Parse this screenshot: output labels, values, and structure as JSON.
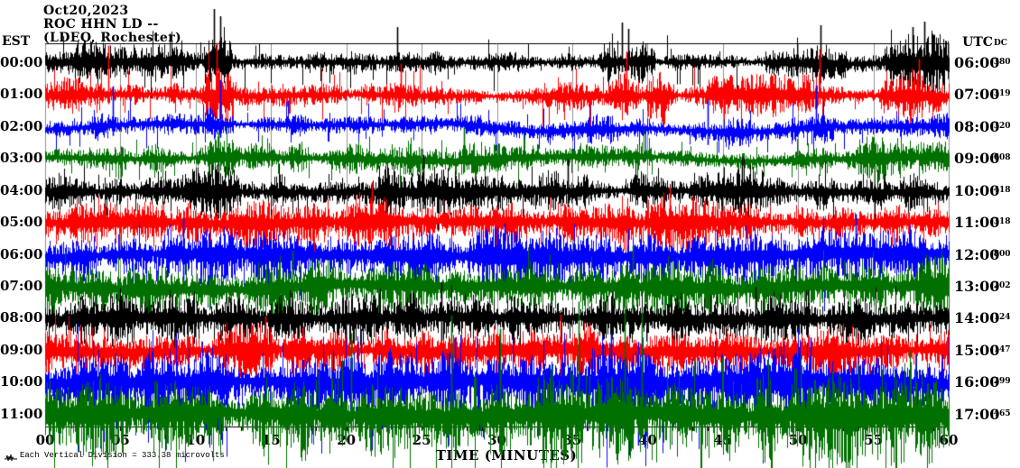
{
  "header": {
    "date": "Oct20,2023",
    "station": "ROC HHN LD --",
    "network": "(LDEO, Rochester)"
  },
  "axes": {
    "left_label": "EST",
    "right_label": "UTC",
    "dc_label": "DC",
    "x_title": "TIME (MINUTES)",
    "x_ticks": [
      "00",
      "05",
      "10",
      "15",
      "20",
      "25",
      "30",
      "35",
      "40",
      "45",
      "50",
      "55",
      "60"
    ]
  },
  "footnote": {
    "text": "Each Vertical Division = 333.38 microvolts",
    "icon": "mini-seismogram-icon"
  },
  "colors": {
    "background": "#ffffff",
    "frame": "#000000",
    "grid": "#909090",
    "trace_black": "#000000",
    "trace_red": "#ff0000",
    "trace_blue": "#0000ff",
    "trace_green": "#007000"
  },
  "noise_seed": 1337,
  "chart_data": {
    "type": "line",
    "variant": "helicorder-seismogram",
    "title": "ROC HHN LD -- (LDEO, Rochester) Oct20,2023",
    "xlabel": "TIME (MINUTES)",
    "x_range_minutes": [
      0,
      60
    ],
    "x_tick_step_minutes": 5,
    "minutes_per_row": 60,
    "grid": true,
    "rows": [
      {
        "est": "00:00",
        "utc": "06:00",
        "dc": "-380",
        "color": "#000000",
        "base_amp": 8,
        "wander": 2,
        "down_bias": 1.0,
        "tail": 30,
        "spike_rate": 0.05,
        "bursts": [
          [
            0,
            9.5,
            2.0
          ],
          [
            10.6,
            12.4,
            2.6
          ],
          [
            22.5,
            26.2,
            1.8
          ],
          [
            37,
            40.5,
            2.0
          ],
          [
            47.8,
            53.2,
            2.2
          ],
          [
            55.8,
            60,
            2.6
          ]
        ],
        "events": [
          [
            11.2,
            60,
            12
          ],
          [
            11.6,
            52,
            10
          ],
          [
            23.4,
            40,
            8
          ],
          [
            38.3,
            45,
            10
          ],
          [
            38.7,
            38,
            8
          ],
          [
            51.5,
            42,
            10
          ],
          [
            57.6,
            40,
            8
          ],
          [
            58.4,
            46,
            10
          ]
        ]
      },
      {
        "est": "01:00",
        "utc": "07:00",
        "dc": "-319",
        "color": "#ff0000",
        "base_amp": 8,
        "wander": 2,
        "down_bias": 1.0,
        "tail": 26,
        "spike_rate": 0.06,
        "bursts": [
          [
            0,
            2.5,
            1.7
          ],
          [
            10.6,
            12.5,
            2.3
          ],
          [
            22.5,
            26,
            1.6
          ],
          [
            34,
            42,
            2.0
          ],
          [
            44,
            53,
            2.0
          ],
          [
            55.5,
            60,
            2.3
          ]
        ],
        "events": [
          [
            4.2,
            55,
            10
          ],
          [
            11.4,
            58,
            12
          ],
          [
            23.6,
            35,
            8
          ],
          [
            38.6,
            48,
            10
          ],
          [
            51.4,
            50,
            10
          ],
          [
            58.0,
            40,
            10
          ]
        ]
      },
      {
        "est": "02:00",
        "utc": "08:00",
        "dc": "-320",
        "color": "#0000ff",
        "base_amp": 7,
        "wander": 7,
        "down_bias": 1.1,
        "tail": 22,
        "spike_rate": 0.05,
        "bursts": [
          [
            3,
            6,
            1.4
          ],
          [
            10.6,
            12.5,
            2.0
          ],
          [
            23,
            26,
            1.5
          ],
          [
            36,
            40,
            1.6
          ],
          [
            43,
            47,
            1.4
          ],
          [
            49.5,
            52.5,
            1.8
          ],
          [
            56,
            60,
            1.9
          ]
        ],
        "events": [
          [
            4.5,
            45,
            10
          ],
          [
            11.6,
            52,
            12
          ],
          [
            44.0,
            30,
            20
          ],
          [
            51.2,
            46,
            10
          ]
        ]
      },
      {
        "est": "03:00",
        "utc": "09:00",
        "dc": "-608",
        "color": "#007000",
        "base_amp": 10,
        "wander": 3,
        "down_bias": 1.0,
        "tail": 18,
        "spike_rate": 0.05,
        "bursts": [
          [
            0,
            3,
            1.4
          ],
          [
            10.8,
            12.5,
            1.6
          ],
          [
            24,
            26,
            1.4
          ],
          [
            27.5,
            29,
            1.4
          ],
          [
            54,
            60,
            1.9
          ]
        ],
        "events": [
          [
            11.5,
            30,
            25
          ],
          [
            27.8,
            35,
            15
          ]
        ]
      },
      {
        "est": "04:00",
        "utc": "10:00",
        "dc": "-418",
        "color": "#000000",
        "base_amp": 13,
        "wander": 2,
        "down_bias": 1.0,
        "tail": 20,
        "spike_rate": 0.06,
        "bursts": [
          [
            9,
            13,
            1.5
          ],
          [
            22,
            27,
            1.5
          ],
          [
            33,
            36,
            1.3
          ],
          [
            43,
            48,
            1.4
          ]
        ],
        "events": [
          [
            25.1,
            40,
            20
          ],
          [
            34.7,
            35,
            18
          ],
          [
            46.3,
            38,
            15
          ]
        ]
      },
      {
        "est": "05:00",
        "utc": "11:00",
        "dc": "-318",
        "color": "#ff0000",
        "base_amp": 15,
        "wander": 2,
        "down_bias": 1.1,
        "tail": 20,
        "spike_rate": 0.07,
        "bursts": [
          [
            0,
            4,
            1.3
          ],
          [
            20,
            26,
            1.3
          ],
          [
            38,
            44,
            1.3
          ]
        ],
        "events": [
          [
            21.7,
            45,
            20
          ],
          [
            41.5,
            40,
            22
          ]
        ]
      },
      {
        "est": "06:00",
        "utc": "12:00",
        "dc": "-800",
        "color": "#0000ff",
        "base_amp": 16,
        "wander": 3,
        "down_bias": 1.3,
        "tail": 26,
        "spike_rate": 0.08,
        "bursts": [
          [
            8,
            14,
            1.25
          ],
          [
            28,
            34,
            1.25
          ],
          [
            50,
            56,
            1.3
          ]
        ],
        "events": [
          [
            9.2,
            40,
            35
          ],
          [
            30.5,
            35,
            40
          ],
          [
            53.8,
            45,
            30
          ]
        ]
      },
      {
        "est": "07:00",
        "utc": "13:00",
        "dc": "-202",
        "color": "#007000",
        "base_amp": 18,
        "wander": 3,
        "down_bias": 1.15,
        "tail": 24,
        "spike_rate": 0.08,
        "bursts": [
          [
            0,
            5,
            1.2
          ],
          [
            15,
            21,
            1.2
          ],
          [
            36,
            42,
            1.25
          ],
          [
            55,
            60,
            1.25
          ]
        ],
        "events": [
          [
            16.4,
            40,
            30
          ],
          [
            39.0,
            45,
            35
          ]
        ]
      },
      {
        "est": "08:00",
        "utc": "14:00",
        "dc": "-124",
        "color": "#000000",
        "base_amp": 16,
        "wander": 2,
        "down_bias": 1.1,
        "tail": 22,
        "spike_rate": 0.07,
        "bursts": [
          [
            4,
            9,
            1.2
          ],
          [
            24,
            30,
            1.25
          ],
          [
            44,
            50,
            1.25
          ]
        ],
        "events": [
          [
            26.3,
            40,
            25
          ],
          [
            47.2,
            35,
            28
          ]
        ]
      },
      {
        "est": "09:00",
        "utc": "15:00",
        "dc": "-147",
        "color": "#ff0000",
        "base_amp": 15,
        "wander": 2,
        "down_bias": 1.1,
        "tail": 22,
        "spike_rate": 0.07,
        "bursts": [
          [
            0,
            3,
            1.2
          ],
          [
            12,
            18,
            1.2
          ],
          [
            31,
            37,
            1.25
          ],
          [
            52,
            58,
            1.25
          ]
        ],
        "events": [
          [
            14.6,
            38,
            25
          ],
          [
            34.2,
            40,
            28
          ]
        ]
      },
      {
        "est": "10:00",
        "utc": "16:00",
        "dc": "-299",
        "color": "#0000ff",
        "base_amp": 20,
        "wander": 3,
        "down_bias": 1.4,
        "tail": 44,
        "spike_rate": 0.1,
        "bursts": [
          [
            6,
            12,
            1.2
          ],
          [
            22,
            28,
            1.25
          ],
          [
            37,
            41,
            1.3
          ],
          [
            47,
            53,
            1.25
          ]
        ],
        "events": [
          [
            27.2,
            50,
            45
          ],
          [
            37.6,
            55,
            60
          ],
          [
            39.4,
            45,
            70
          ],
          [
            50.8,
            50,
            40
          ]
        ]
      },
      {
        "est": "11:00",
        "utc": "17:00",
        "dc": "-465",
        "color": "#007000",
        "base_amp": 22,
        "wander": 3,
        "down_bias": 1.35,
        "tail": 42,
        "spike_rate": 0.1,
        "bursts": [
          [
            0,
            8,
            1.2
          ],
          [
            17,
            24,
            1.2
          ],
          [
            33,
            40,
            1.3
          ],
          [
            45,
            60,
            1.2
          ]
        ],
        "events": [
          [
            20.3,
            90,
            20
          ],
          [
            27.0,
            110,
            25
          ],
          [
            30.2,
            95,
            20
          ],
          [
            35.4,
            125,
            28
          ],
          [
            38.5,
            140,
            30
          ],
          [
            39.6,
            115,
            25
          ]
        ]
      }
    ],
    "footnote": "Each Vertical Division = 333.38 microvolts"
  }
}
